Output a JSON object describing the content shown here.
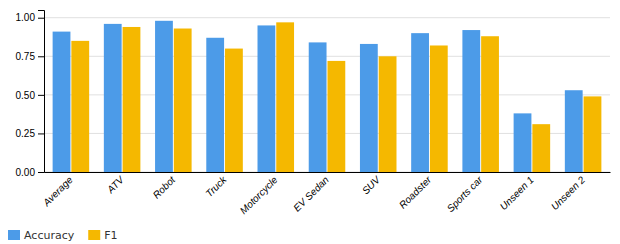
{
  "chart_data": {
    "type": "bar",
    "categories": [
      "Average",
      "ATV",
      "Robot",
      "Truck",
      "Motorcycle",
      "EV Sedan",
      "SUV",
      "Roadster",
      "Sports car",
      "Unseen 1",
      "Unseen 2"
    ],
    "series": [
      {
        "name": "Accuracy",
        "color": "#4C9BE8",
        "values": [
          0.91,
          0.96,
          0.98,
          0.87,
          0.95,
          0.84,
          0.83,
          0.9,
          0.92,
          0.38,
          0.53
        ]
      },
      {
        "name": "F1",
        "color": "#F5B800",
        "values": [
          0.85,
          0.94,
          0.93,
          0.8,
          0.97,
          0.72,
          0.75,
          0.82,
          0.88,
          0.31,
          0.49
        ]
      }
    ],
    "ylim": [
      0,
      1.05
    ],
    "yticks": [
      {
        "value": 0.0,
        "label": "0.00"
      },
      {
        "value": 0.25,
        "label": "0.25"
      },
      {
        "value": 0.5,
        "label": "0.50"
      },
      {
        "value": 0.75,
        "label": "0.75"
      },
      {
        "value": 1.0,
        "label": "1.00"
      }
    ],
    "grid": true,
    "legend": "lower left"
  }
}
